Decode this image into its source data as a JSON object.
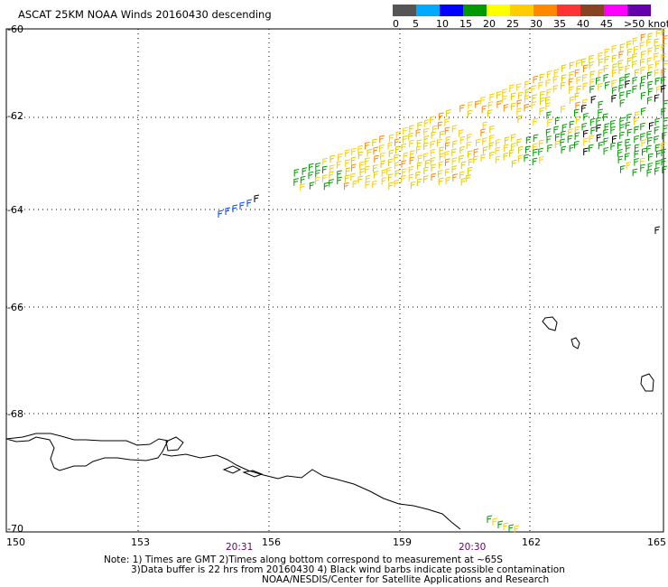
{
  "title": "ASCAT 25KM NOAA Winds 20160430 descending",
  "legend": {
    "labels": [
      "0",
      "5",
      "10",
      "15",
      "20",
      "25",
      "30",
      "35",
      "40",
      "45",
      ">50 knots"
    ],
    "colors": [
      "#555555",
      "#00aaff",
      "#0000ff",
      "#009900",
      "#ffff00",
      "#ffcc00",
      "#ff8800",
      "#ff3333",
      "#884422",
      "#ff00ff",
      "#6600aa"
    ]
  },
  "axes": {
    "lon_labels": [
      "150",
      "153",
      "156",
      "159",
      "162",
      "165"
    ],
    "lat_labels": [
      "-60",
      "-62",
      "-64",
      "-66",
      "-68",
      "-70"
    ]
  },
  "pass_times": [
    "20:31",
    "20:30"
  ],
  "notes": [
    "Note: 1) Times are GMT 2)Times along bottom correspond to measurement at ~65S",
    "3)Data buffer is 22 hrs from 20160430 4) Black wind barbs indicate possible contamination",
    "NOAA/NESDIS/Center for Satellite Applications and Research"
  ],
  "colors": {
    "grid": "#000000",
    "coast": "#000000",
    "time_label": "#660066"
  }
}
